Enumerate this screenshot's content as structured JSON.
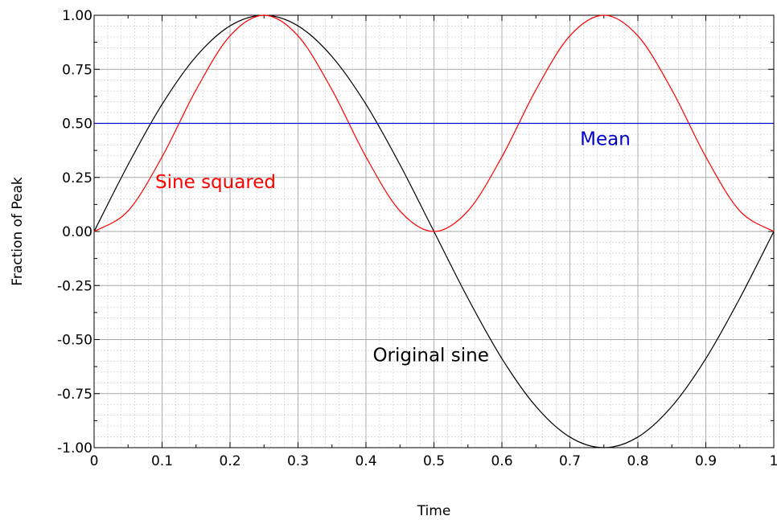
{
  "chart_data": {
    "type": "line",
    "title": "",
    "xlabel": "Time",
    "ylabel": "Fraction of Peak",
    "xlim": [
      0,
      1
    ],
    "ylim": [
      -1,
      1
    ],
    "x_ticks": [
      "0",
      "0.1",
      "0.2",
      "0.3",
      "0.4",
      "0.5",
      "0.6",
      "0.7",
      "0.8",
      "0.9",
      "1"
    ],
    "y_ticks": [
      "1.00",
      "0.75",
      "0.50",
      "0.25",
      "0.00",
      "-0.25",
      "-0.50",
      "-0.75",
      "-1.00"
    ],
    "grid": true,
    "series": [
      {
        "color": "#000000",
        "x": [
          0,
          0.05,
          0.1,
          0.15,
          0.2,
          0.25,
          0.3,
          0.35,
          0.4,
          0.45,
          0.5,
          0.55,
          0.6,
          0.65,
          0.7,
          0.75,
          0.8,
          0.85,
          0.9,
          0.95,
          1
        ],
        "y": [
          0,
          0.309,
          0.588,
          0.809,
          0.951,
          1,
          0.951,
          0.809,
          0.588,
          0.309,
          0,
          -0.309,
          -0.588,
          -0.809,
          -0.951,
          -1,
          -0.951,
          -0.809,
          -0.588,
          -0.309,
          0
        ]
      },
      {
        "color": "#ff0000",
        "x": [
          0,
          0.05,
          0.1,
          0.15,
          0.2,
          0.25,
          0.3,
          0.35,
          0.4,
          0.45,
          0.5,
          0.55,
          0.6,
          0.65,
          0.7,
          0.75,
          0.8,
          0.85,
          0.9,
          0.95,
          1
        ],
        "y": [
          0,
          0.095,
          0.345,
          0.655,
          0.905,
          1,
          0.905,
          0.655,
          0.345,
          0.095,
          0,
          0.095,
          0.345,
          0.655,
          0.905,
          1,
          0.905,
          0.655,
          0.345,
          0.095,
          0
        ]
      },
      {
        "color": "#0000cc",
        "x": [
          0,
          1
        ],
        "y": [
          0.5,
          0.5
        ]
      }
    ],
    "annotations": [
      {
        "text": "Sine squared",
        "x": 0.09,
        "y": 0.2,
        "color": "#ff0000"
      },
      {
        "text": "Mean",
        "x": 0.715,
        "y": 0.4,
        "color": "#0000cc"
      },
      {
        "text": "Original sine",
        "x": 0.41,
        "y": -0.6,
        "color": "#000000"
      }
    ]
  }
}
